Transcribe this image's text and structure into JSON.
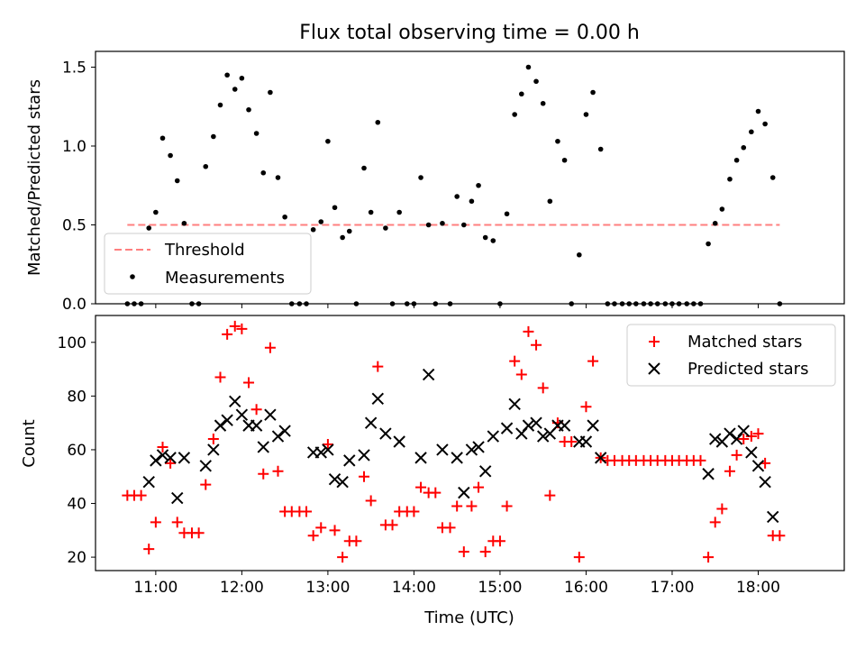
{
  "figure": {
    "title": "Flux total observing time = 0.00 h"
  },
  "chart_data": [
    {
      "type": "scatter",
      "panel": "top",
      "title": "Flux total observing time = 0.00 h",
      "xlabel": "",
      "ylabel": "Matched/Predicted stars",
      "x_unit": "hours UTC",
      "xlim": [
        10.3,
        19.0
      ],
      "ylim": [
        0.0,
        1.6
      ],
      "xticks": [
        11,
        12,
        13,
        14,
        15,
        16,
        17,
        18
      ],
      "xtick_labels": [],
      "yticks": [
        0.0,
        0.5,
        1.0,
        1.5
      ],
      "ytick_labels": [
        "0.0",
        "0.5",
        "1.0",
        "1.5"
      ],
      "legend_position": "lower-left",
      "grid": false,
      "series": [
        {
          "name": "Threshold",
          "kind": "line",
          "style": "dashed",
          "color": "#ff7f7f",
          "x": [
            10.67,
            18.25
          ],
          "y": [
            0.5,
            0.5
          ]
        },
        {
          "name": "Measurements",
          "kind": "points",
          "marker": "dot",
          "color": "#000000",
          "x": [
            10.67,
            10.75,
            10.83,
            10.92,
            11.0,
            11.08,
            11.17,
            11.25,
            11.33,
            11.42,
            11.5,
            11.58,
            11.67,
            11.75,
            11.83,
            11.92,
            12.0,
            12.08,
            12.17,
            12.25,
            12.33,
            12.42,
            12.5,
            12.58,
            12.67,
            12.75,
            12.83,
            12.92,
            13.0,
            13.08,
            13.17,
            13.25,
            13.33,
            13.42,
            13.5,
            13.58,
            13.67,
            13.75,
            13.83,
            13.92,
            14.0,
            14.08,
            14.17,
            14.25,
            14.33,
            14.42,
            14.5,
            14.58,
            14.67,
            14.75,
            14.83,
            14.92,
            15.0,
            15.08,
            15.17,
            15.25,
            15.33,
            15.42,
            15.5,
            15.58,
            15.67,
            15.75,
            15.83,
            15.92,
            16.0,
            16.08,
            16.17,
            16.25,
            16.33,
            16.42,
            16.5,
            16.58,
            16.67,
            16.75,
            16.83,
            16.92,
            17.0,
            17.08,
            17.17,
            17.25,
            17.33,
            17.42,
            17.5,
            17.58,
            17.67,
            17.75,
            17.83,
            17.92,
            18.0,
            18.08,
            18.17,
            18.25
          ],
          "y": [
            0,
            0,
            0,
            0.48,
            0.58,
            1.05,
            0.94,
            0.78,
            0.51,
            0,
            0,
            0.87,
            1.06,
            1.26,
            1.45,
            1.36,
            1.43,
            1.23,
            1.08,
            0.83,
            1.34,
            0.8,
            0.55,
            0,
            0,
            0,
            0.47,
            0.52,
            1.03,
            0.61,
            0.42,
            0.46,
            0,
            0.86,
            0.58,
            1.15,
            0.48,
            0,
            0.58,
            0,
            0,
            0.8,
            0.5,
            0,
            0.51,
            0,
            0.68,
            0.5,
            0.65,
            0.75,
            0.42,
            0.4,
            0,
            0.57,
            1.2,
            1.33,
            1.5,
            1.41,
            1.27,
            0.65,
            1.03,
            0.91,
            0,
            0.31,
            1.2,
            1.34,
            0.98,
            0,
            0,
            0,
            0,
            0,
            0,
            0,
            0,
            0,
            0,
            0,
            0,
            0,
            0,
            0.38,
            0.51,
            0.6,
            0.79,
            0.91,
            0.99,
            1.09,
            1.22,
            1.14,
            0.8,
            0
          ]
        }
      ]
    },
    {
      "type": "scatter",
      "panel": "bottom",
      "xlabel": "Time (UTC)",
      "ylabel": "Count",
      "x_unit": "hours UTC",
      "xlim": [
        10.3,
        19.0
      ],
      "ylim": [
        15,
        110
      ],
      "xticks": [
        11,
        12,
        13,
        14,
        15,
        16,
        17,
        18
      ],
      "xtick_labels": [
        "11:00",
        "12:00",
        "13:00",
        "14:00",
        "15:00",
        "16:00",
        "17:00",
        "18:00"
      ],
      "yticks": [
        20,
        40,
        60,
        80,
        100
      ],
      "ytick_labels": [
        "20",
        "40",
        "60",
        "80",
        "100"
      ],
      "legend_position": "upper-right",
      "grid": false,
      "series": [
        {
          "name": "Matched stars",
          "marker": "plus",
          "color": "#ff0000",
          "x": [
            10.67,
            10.75,
            10.83,
            10.92,
            11.0,
            11.08,
            11.17,
            11.25,
            11.33,
            11.42,
            11.5,
            11.58,
            11.67,
            11.75,
            11.83,
            11.92,
            12.0,
            12.08,
            12.17,
            12.25,
            12.33,
            12.42,
            12.5,
            12.58,
            12.67,
            12.75,
            12.83,
            12.92,
            13.0,
            13.08,
            13.17,
            13.25,
            13.33,
            13.42,
            13.5,
            13.58,
            13.67,
            13.75,
            13.83,
            13.92,
            14.0,
            14.08,
            14.17,
            14.25,
            14.33,
            14.42,
            14.5,
            14.58,
            14.67,
            14.75,
            14.83,
            14.92,
            15.0,
            15.08,
            15.17,
            15.25,
            15.33,
            15.42,
            15.5,
            15.58,
            15.67,
            15.75,
            15.83,
            15.92,
            16.0,
            16.08,
            16.17,
            16.25,
            16.33,
            16.42,
            16.5,
            16.58,
            16.67,
            16.75,
            16.83,
            16.92,
            17.0,
            17.08,
            17.17,
            17.25,
            17.33,
            17.42,
            17.5,
            17.58,
            17.67,
            17.75,
            17.83,
            17.92,
            18.0,
            18.08,
            18.17,
            18.25
          ],
          "y": [
            43,
            43,
            43,
            23,
            33,
            61,
            55,
            33,
            29,
            29,
            29,
            47,
            64,
            87,
            103,
            106,
            105,
            85,
            75,
            51,
            98,
            52,
            37,
            37,
            37,
            37,
            28,
            31,
            62,
            30,
            20,
            26,
            26,
            50,
            41,
            91,
            32,
            32,
            37,
            37,
            37,
            46,
            44,
            44,
            31,
            31,
            39,
            22,
            39,
            46,
            22,
            26,
            26,
            39,
            93,
            88,
            104,
            99,
            83,
            43,
            70,
            63,
            63,
            20,
            76,
            93,
            57,
            56,
            56,
            56,
            56,
            56,
            56,
            56,
            56,
            56,
            56,
            56,
            56,
            56,
            56,
            20,
            33,
            38,
            52,
            58,
            64,
            65,
            66,
            55,
            28,
            28
          ]
        },
        {
          "name": "Predicted stars",
          "marker": "x",
          "color": "#000000",
          "x": [
            10.92,
            11.0,
            11.08,
            11.17,
            11.25,
            11.33,
            11.58,
            11.67,
            11.75,
            11.83,
            11.92,
            12.0,
            12.08,
            12.17,
            12.25,
            12.33,
            12.42,
            12.5,
            12.83,
            12.92,
            13.0,
            13.08,
            13.17,
            13.25,
            13.42,
            13.5,
            13.58,
            13.67,
            13.83,
            14.08,
            14.17,
            14.33,
            14.5,
            14.58,
            14.67,
            14.75,
            14.83,
            14.92,
            15.08,
            15.17,
            15.25,
            15.33,
            15.42,
            15.5,
            15.58,
            15.67,
            15.75,
            15.92,
            16.0,
            16.08,
            16.17,
            17.42,
            17.5,
            17.58,
            17.67,
            17.75,
            17.83,
            17.92,
            18.0,
            18.08,
            18.17
          ],
          "y": [
            48,
            56,
            58,
            57,
            42,
            57,
            54,
            60,
            69,
            71,
            78,
            73,
            69,
            69,
            61,
            73,
            65,
            67,
            59,
            59,
            60,
            49,
            48,
            56,
            58,
            70,
            79,
            66,
            63,
            57,
            88,
            60,
            57,
            44,
            60,
            61,
            52,
            65,
            68,
            77,
            66,
            69,
            70,
            65,
            66,
            69,
            69,
            63,
            63,
            69,
            57,
            51,
            64,
            63,
            66,
            64,
            67,
            59,
            54,
            48,
            35
          ]
        }
      ]
    }
  ]
}
